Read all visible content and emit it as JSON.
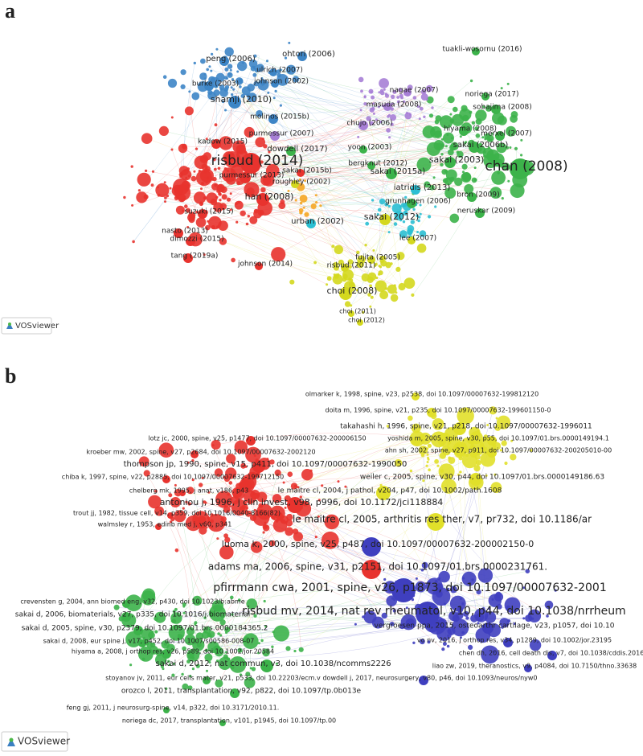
{
  "panel_a": {
    "label": "a",
    "logo": "VOSviewer",
    "nodes": [
      {
        "label": "risbud (2014)"
      },
      {
        "label": "chan (2008)"
      },
      {
        "label": "sakai (2006b)"
      },
      {
        "label": "sakai (2003)"
      },
      {
        "label": "sakai (2015a)"
      },
      {
        "label": "sakai (2012)"
      },
      {
        "label": "shamji (2010)"
      },
      {
        "label": "peng (2006)"
      },
      {
        "label": "ohtori (2006)"
      },
      {
        "label": "ulrich (2007)"
      },
      {
        "label": "johnson (2002)"
      },
      {
        "label": "burke (2003)"
      },
      {
        "label": "dowdell (2017)"
      },
      {
        "label": "purmessur (2013)"
      },
      {
        "label": "han (2008)"
      },
      {
        "label": "kadow (2015)"
      },
      {
        "label": "molinos (2015b)"
      },
      {
        "label": "purmessur (2007)"
      },
      {
        "label": "choi (2008)"
      },
      {
        "label": "urban (2002)"
      },
      {
        "label": "lee (2007)"
      },
      {
        "label": "fujita (2005)"
      },
      {
        "label": "grunhagen (2006)"
      },
      {
        "label": "iatridis (2013)"
      },
      {
        "label": "yoon (2003)"
      },
      {
        "label": "chujo (2006)"
      },
      {
        "label": "masuda (2008)"
      },
      {
        "label": "nagae (2007)"
      },
      {
        "label": "tuakli-wosornu (2016)"
      },
      {
        "label": "sobajima (2008)"
      },
      {
        "label": "hiyama (2008)"
      },
      {
        "label": "noriega (2017)"
      },
      {
        "label": "merxel (2007)"
      },
      {
        "label": "neruskar (2009)"
      },
      {
        "label": "bron (2009)"
      },
      {
        "label": "suzuki (2015)"
      },
      {
        "label": "nasto (2013)"
      },
      {
        "label": "dimozzi (2015)"
      },
      {
        "label": "tang (2019a)"
      },
      {
        "label": "johnson (2014)"
      },
      {
        "label": "bergknut (2012)"
      },
      {
        "label": "roughley (2002)"
      },
      {
        "label": "sakai (2015b)"
      },
      {
        "label": "choi (2011)"
      },
      {
        "label": "choi (2012)"
      },
      {
        "label": "risbud (2011)"
      }
    ]
  },
  "panel_b": {
    "label": "b",
    "logo": "VOSviewer",
    "nodes": [
      {
        "label": "olmarker k, 1998, spine, v23, p2538, doi 10.1097/00007632-199812120"
      },
      {
        "label": "doita m, 1996, spine, v21, p235, doi 10.1097/00007632-199601150-0"
      },
      {
        "label": "takahashi h, 1996, spine, v21, p218, doi 10.1097/00007632-1996011"
      },
      {
        "label": "yoshida m, 2005, spine, v30, p55, doi 10.1097/01.brs.0000149194.1"
      },
      {
        "label": "ahn sh, 2002, spine, v27, p911, doi 10.1097/00007632-200205010-00"
      },
      {
        "label": "lotz jc, 2000, spine, v25, p1477, doi 10.1097/00007632-200006150"
      },
      {
        "label": "kroeber mw, 2002, spine, v27, p2684, doi 10.1097/00007632-2002120"
      },
      {
        "label": "thompson jp, 1990, spine, v15, p411, doi 10.1097/00007632-1990050"
      },
      {
        "label": "chiba k, 1997, spine, v22, p2885, doi 10.1097/00007632-199712150"
      },
      {
        "label": "weiler c, 2005, spine, v30, p44, doi 10.1097/01.brs.0000149186.63"
      },
      {
        "label": "le maitre cl, 2004, j pathol, v204, p47, doi 10.1002/path.1608"
      },
      {
        "label": "chelberg mk, 1995, j anat, v186, p43"
      },
      {
        "label": "antoniou j, 1996, j clin invest, v98, p996, doi 10.1172/jci118884"
      },
      {
        "label": "trout jj, 1982, tissue cell, v14, p359, doi 10.1016/0040-8166(82)"
      },
      {
        "label": "le maitre cl, 2005, arthritis res ther, v7, pr732, doi 10.1186/ar"
      },
      {
        "label": "walmsley r, 1953, edinb med j, v60, p341"
      },
      {
        "label": "luoma k, 2000, spine, v25, p487, doi 10.1097/00007632-200002150-0"
      },
      {
        "label": "adams ma, 2006, spine, v31, p2151, doi 10.1097/01.brs.0000231761."
      },
      {
        "label": "pfirrmann cwa, 2001, spine, v26, p1873, doi 10.1097/00007632-2001"
      },
      {
        "label": "crevensten g, 2004, ann biomed eng, v32, p430, doi 10.1023/b:abme"
      },
      {
        "label": "risbud mv, 2014, nat rev rheumatol, v10, p44, doi 10.1038/nrrheum"
      },
      {
        "label": "sakai d, 2006, biomaterials, v27, p335, doi 10.1016/j.biomaterial"
      },
      {
        "label": "sakai d, 2005, spine, v30, p2379, doi 10.1097/01.brs.0000184365.2"
      },
      {
        "label": "vergroesen ppa, 2015, osteoarthr cartilage, v23, p1057, doi 10.10"
      },
      {
        "label": "sakai d, 2008, eur spine j, v17, p452, doi 10.1007/s00586-008-07"
      },
      {
        "label": "vo nv, 2016, j orthop res, v34, p1289, doi 10.1002/jor.23195"
      },
      {
        "label": "hiyama a, 2008, j orthop res, v26, p589, doi 10.1002/jor.20584"
      },
      {
        "label": "chen dh, 2016, cell death dis, v7, doi 10.1038/cddis.2016.334"
      },
      {
        "label": "sakai d, 2012, nat commun, v3, doi 10.1038/ncomms2226"
      },
      {
        "label": "liao zw, 2019, theranostics, v9, p4084, doi 10.7150/thno.33638"
      },
      {
        "label": "stoyanov jv, 2011, eur cells mater, v21, p533, doi 10.22203/ecm.v"
      },
      {
        "label": "dowdell j, 2017, neurosurgery, v80, p46, doi 10.1093/neuros/nyw0"
      },
      {
        "label": "orozco l, 2011, transplantation, v92, p822, doi 10.1097/tp.0b013e"
      },
      {
        "label": "feng gj, 2011, j neurosurg-spine, v14, p322, doi 10.3171/2010.11."
      },
      {
        "label": "noriega dc, 2017, transplantation, v101, p1945, doi 10.1097/tp.00"
      }
    ]
  }
}
